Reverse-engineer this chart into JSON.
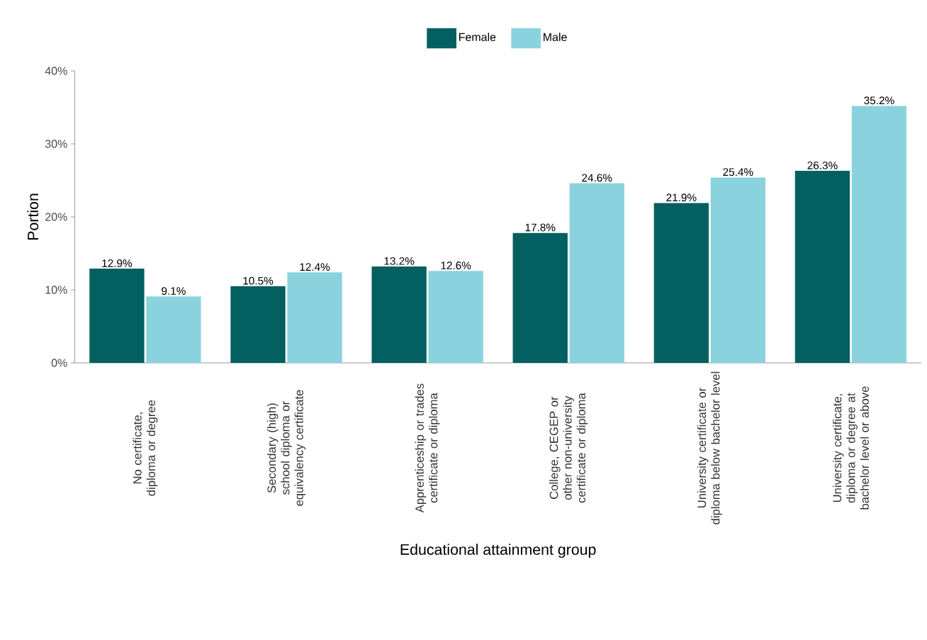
{
  "chart_data": {
    "type": "bar",
    "xlabel": "Educational attainment group",
    "ylabel": "Portion",
    "categories": [
      "No certificate, diploma or degree",
      "Secondary (high) school diploma or equivalency certificate",
      "Apprenticeship or trades certificate or diploma",
      "College, CEGEP or other non-university certificate or diploma",
      "University certificate or diploma below bachelor level",
      "University certificate, diploma or degree at bachelor level or above"
    ],
    "series": [
      {
        "name": "Female",
        "color": "#035f60",
        "values": [
          12.9,
          10.5,
          13.2,
          17.8,
          21.9,
          26.3
        ],
        "value_labels": [
          "12.9%",
          "10.5%",
          "13.2%",
          "17.8%",
          "21.9%",
          "26.3%"
        ]
      },
      {
        "name": "Male",
        "color": "#8ad3de",
        "values": [
          9.1,
          12.4,
          12.6,
          24.6,
          25.4,
          35.2
        ],
        "value_labels": [
          "9.1%",
          "12.4%",
          "12.6%",
          "24.6%",
          "25.4%",
          "35.2%"
        ]
      }
    ],
    "ylim": [
      0,
      40
    ],
    "yticks": [
      {
        "value": 0,
        "label": "0%"
      },
      {
        "value": 10,
        "label": "10%"
      },
      {
        "value": 20,
        "label": "20%"
      },
      {
        "value": 30,
        "label": "30%"
      },
      {
        "value": 40,
        "label": "40%"
      }
    ],
    "legend": "top"
  }
}
